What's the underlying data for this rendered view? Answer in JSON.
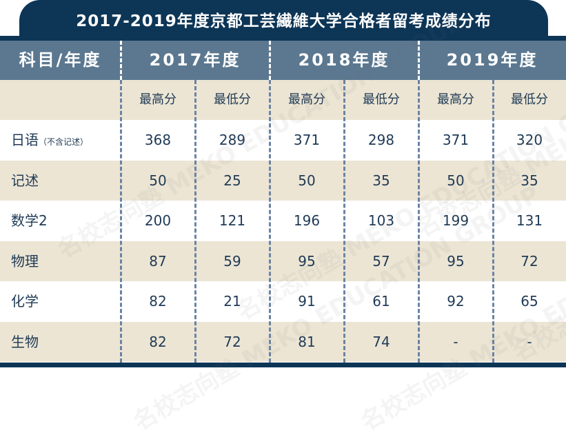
{
  "title": "2017-2019年度京都工芸繊維大学合格者留考成绩分布",
  "watermark": "名校志向塾 MEKO EDUCATION GROUP",
  "header": {
    "subject_label": "科目/年度",
    "years": [
      "2017年度",
      "2018年度",
      "2019年度"
    ]
  },
  "subheader": [
    "最高分",
    "最低分",
    "最高分",
    "最低分",
    "最高分",
    "最低分"
  ],
  "rows": [
    {
      "subject": "日语",
      "note": "（不含记述）",
      "values": [
        "368",
        "289",
        "371",
        "298",
        "371",
        "320"
      ]
    },
    {
      "subject": "记述",
      "note": "",
      "values": [
        "50",
        "25",
        "50",
        "35",
        "50",
        "35"
      ]
    },
    {
      "subject": "数学2",
      "note": "",
      "values": [
        "200",
        "121",
        "196",
        "103",
        "199",
        "131"
      ]
    },
    {
      "subject": "物理",
      "note": "",
      "values": [
        "87",
        "59",
        "95",
        "57",
        "95",
        "72"
      ]
    },
    {
      "subject": "化学",
      "note": "",
      "values": [
        "82",
        "21",
        "91",
        "61",
        "92",
        "65"
      ]
    },
    {
      "subject": "生物",
      "note": "",
      "values": [
        "82",
        "72",
        "81",
        "74",
        "-",
        "-"
      ]
    }
  ],
  "colors": {
    "navy": "#0d3556",
    "header": "#5b7890",
    "beige": "#ece5d4",
    "text": "#1f3a55",
    "divider": "#6b83a3"
  }
}
